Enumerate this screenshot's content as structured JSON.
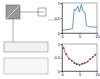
{
  "chart_data": [
    {
      "type": "line",
      "x": [
        0,
        1,
        2,
        3,
        3.5,
        4,
        4.5,
        5,
        5.5,
        6,
        6.5,
        7,
        8,
        9,
        10
      ],
      "values": [
        0.1,
        0.1,
        0.12,
        0.15,
        0.8,
        0.75,
        0.9,
        0.7,
        0.95,
        0.72,
        0.7,
        0.25,
        0.2,
        0.2,
        0.2
      ],
      "color": "#2171b5",
      "xlim": [
        0,
        10
      ],
      "ylim": [
        0,
        1
      ],
      "xticks": [
        0,
        5,
        10
      ],
      "yticks": [
        0,
        0.5,
        1
      ]
    },
    {
      "type": "scatter",
      "series": [
        {
          "type": "scatter",
          "color": "#1f4e9c",
          "x": [
            0.5,
            1.2,
            2,
            2.8,
            3.5,
            4.2,
            5,
            5.8,
            6.5,
            7.3,
            8,
            8.8,
            9.5
          ],
          "values": [
            0.85,
            0.62,
            0.45,
            0.38,
            0.3,
            0.25,
            0.22,
            0.27,
            0.3,
            0.35,
            0.45,
            0.52,
            0.6
          ]
        },
        {
          "type": "line",
          "color": "#d62728",
          "x": [
            0.3,
            1,
            2,
            3,
            4,
            5,
            6,
            7,
            8,
            9,
            9.8
          ],
          "values": [
            0.9,
            0.65,
            0.47,
            0.36,
            0.28,
            0.24,
            0.26,
            0.32,
            0.42,
            0.54,
            0.65
          ]
        }
      ],
      "xlim": [
        0,
        10
      ],
      "ylim": [
        0,
        1
      ],
      "xticks": [
        0,
        5,
        10
      ],
      "yticks": [
        0,
        0.5,
        1
      ]
    }
  ]
}
